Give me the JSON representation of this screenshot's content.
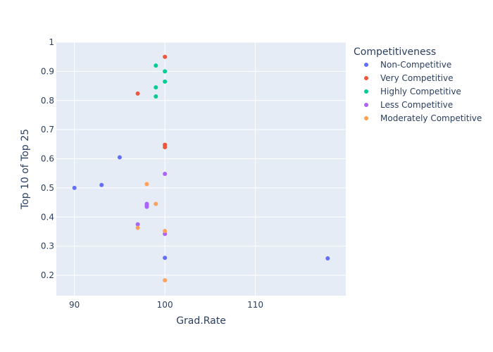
{
  "chart_data": {
    "type": "scatter",
    "title": "",
    "xlabel": "Grad.Rate",
    "ylabel": "Top 10 of Top 25",
    "xlim": [
      88,
      120
    ],
    "ylim": [
      0.13,
      1.0
    ],
    "x_ticks": [
      90,
      100,
      110
    ],
    "y_ticks": [
      0.2,
      0.3,
      0.4,
      0.5,
      0.6,
      0.7,
      0.8,
      0.9,
      1
    ],
    "grid": true,
    "legend": {
      "title": "Competitiveness",
      "placement": "top-right"
    },
    "series": [
      {
        "name": "Non-Competitive",
        "color": "#636efa",
        "points": [
          [
            90,
            0.5
          ],
          [
            93,
            0.51
          ],
          [
            95,
            0.605
          ],
          [
            100,
            0.26
          ],
          [
            118,
            0.258
          ]
        ]
      },
      {
        "name": "Very Competitive",
        "color": "#EF553B",
        "points": [
          [
            97,
            0.824
          ],
          [
            100,
            0.95
          ],
          [
            100,
            0.648
          ],
          [
            100,
            0.64
          ]
        ]
      },
      {
        "name": "Highly Competitive",
        "color": "#00cc96",
        "points": [
          [
            99,
            0.92
          ],
          [
            100,
            0.9
          ],
          [
            100,
            0.865
          ],
          [
            99,
            0.845
          ],
          [
            99,
            0.814
          ]
        ]
      },
      {
        "name": "Less Competitive",
        "color": "#ab63fa",
        "points": [
          [
            100,
            0.548
          ],
          [
            98,
            0.445
          ],
          [
            98,
            0.44
          ],
          [
            98,
            0.435
          ],
          [
            97,
            0.375
          ],
          [
            100,
            0.342
          ]
        ]
      },
      {
        "name": "Moderately Competitive",
        "color": "#FFA15A",
        "points": [
          [
            98,
            0.513
          ],
          [
            99,
            0.445
          ],
          [
            97,
            0.363
          ],
          [
            100,
            0.352
          ],
          [
            100,
            0.183
          ]
        ]
      }
    ]
  }
}
